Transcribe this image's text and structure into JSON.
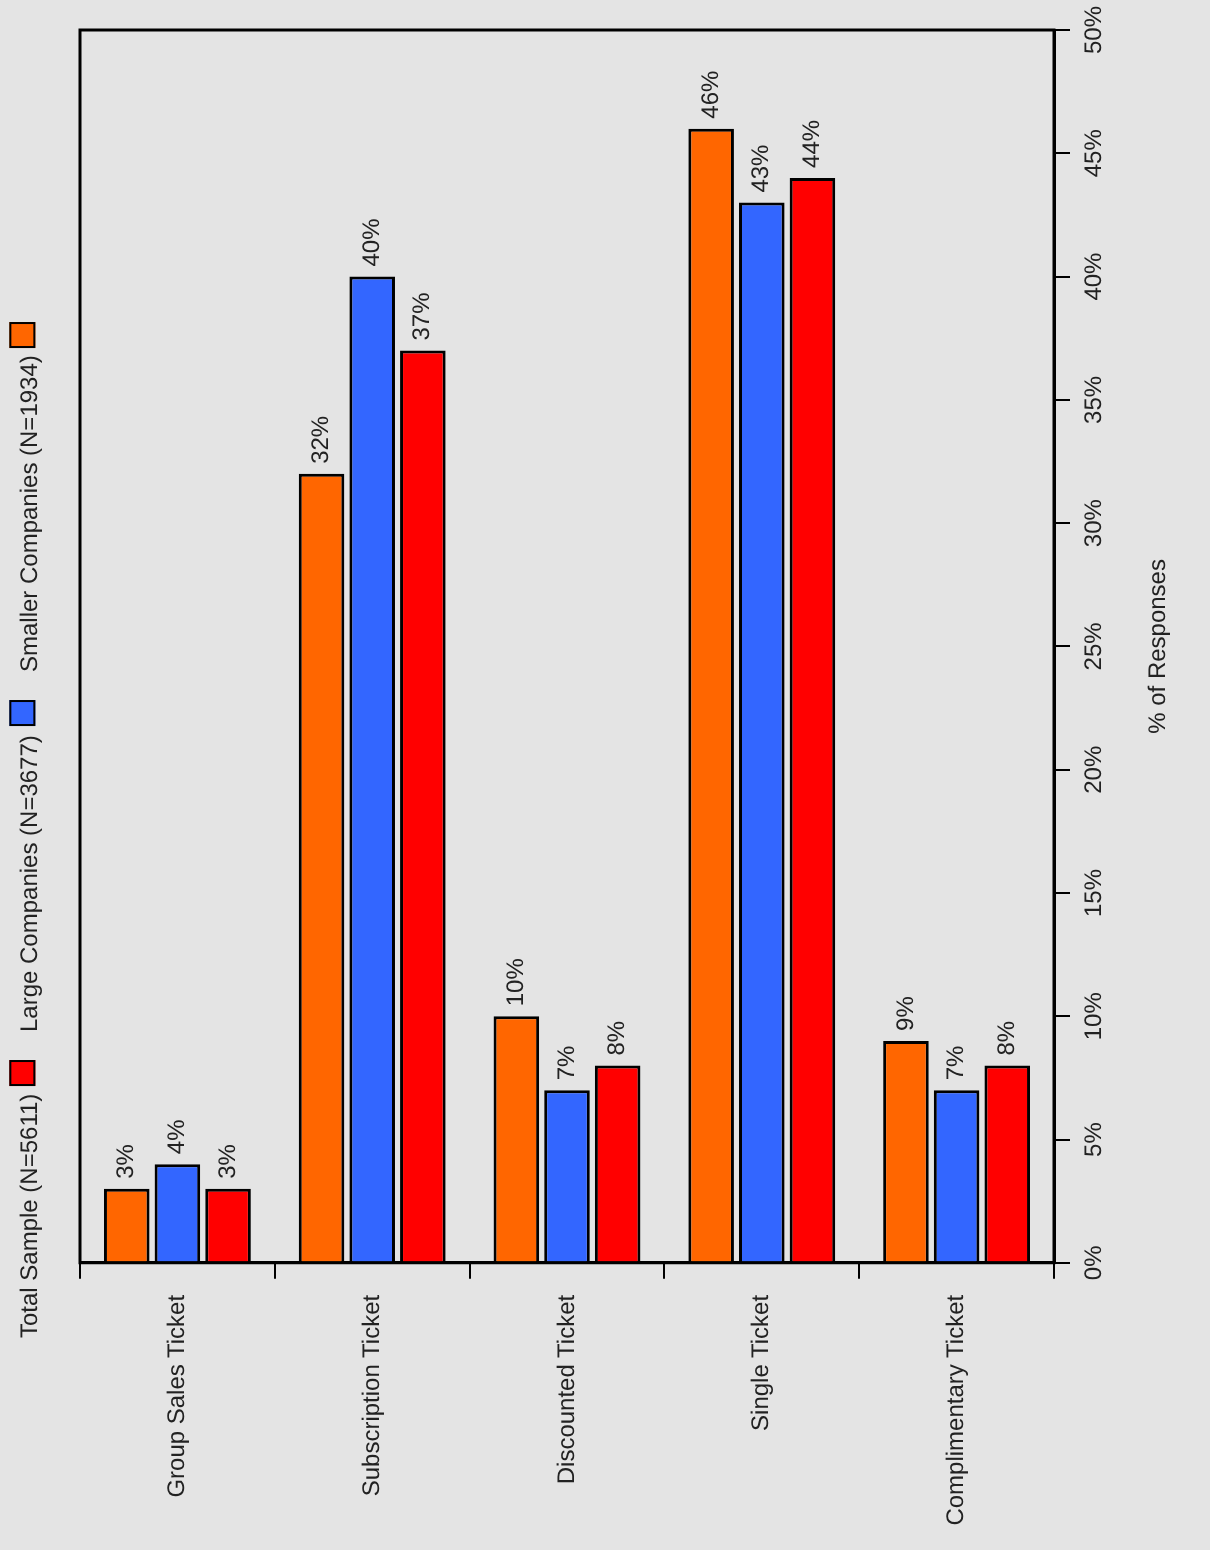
{
  "chart_data": {
    "type": "bar",
    "ylabel": "% of Responses",
    "categories": [
      "Group Sales Ticket",
      "Subscription Ticket",
      "Discounted Ticket",
      "Single Ticket",
      "Complimentary Ticket"
    ],
    "series": [
      {
        "name": "Smaller Companies (N=1934)",
        "color": "#ff6600",
        "values": [
          3,
          32,
          10,
          46,
          9
        ],
        "value_labels": [
          "3%",
          "32%",
          "10%",
          "46%",
          "9%"
        ]
      },
      {
        "name": "Large Companies (N=3677)",
        "color": "#3366ff",
        "values": [
          4,
          40,
          7,
          43,
          7
        ],
        "value_labels": [
          "4%",
          "40%",
          "7%",
          "43%",
          "7%"
        ]
      },
      {
        "name": "Total Sample (N=5611)",
        "color": "#ff0000",
        "values": [
          3,
          37,
          8,
          44,
          8
        ],
        "value_labels": [
          "3%",
          "37%",
          "8%",
          "44%",
          "8%"
        ]
      }
    ],
    "ylim": [
      0,
      50
    ],
    "yticks": [
      {
        "value": 0,
        "label": "0%"
      },
      {
        "value": 5,
        "label": "5%"
      },
      {
        "value": 10,
        "label": "10%"
      },
      {
        "value": 15,
        "label": "15%"
      },
      {
        "value": 20,
        "label": "20%"
      },
      {
        "value": 25,
        "label": "25%"
      },
      {
        "value": 30,
        "label": "30%"
      },
      {
        "value": 35,
        "label": "35%"
      },
      {
        "value": 40,
        "label": "40%"
      },
      {
        "value": 45,
        "label": "45%"
      },
      {
        "value": 50,
        "label": "50%"
      }
    ],
    "grid": false,
    "legend": "left"
  }
}
